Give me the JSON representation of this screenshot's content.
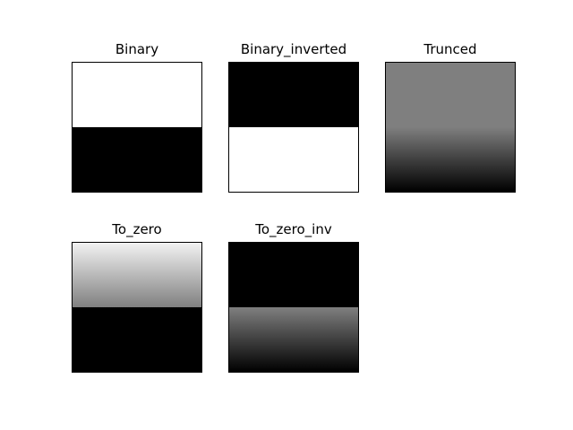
{
  "figure": {
    "panels": [
      {
        "title": "Binary",
        "method": "binary"
      },
      {
        "title": "Binary_inverted",
        "method": "binary_inverted"
      },
      {
        "title": "Trunced",
        "method": "trunc"
      },
      {
        "title": "To_zero",
        "method": "to_zero"
      },
      {
        "title": "To_zero_inv",
        "method": "to_zero_inv"
      }
    ]
  }
}
